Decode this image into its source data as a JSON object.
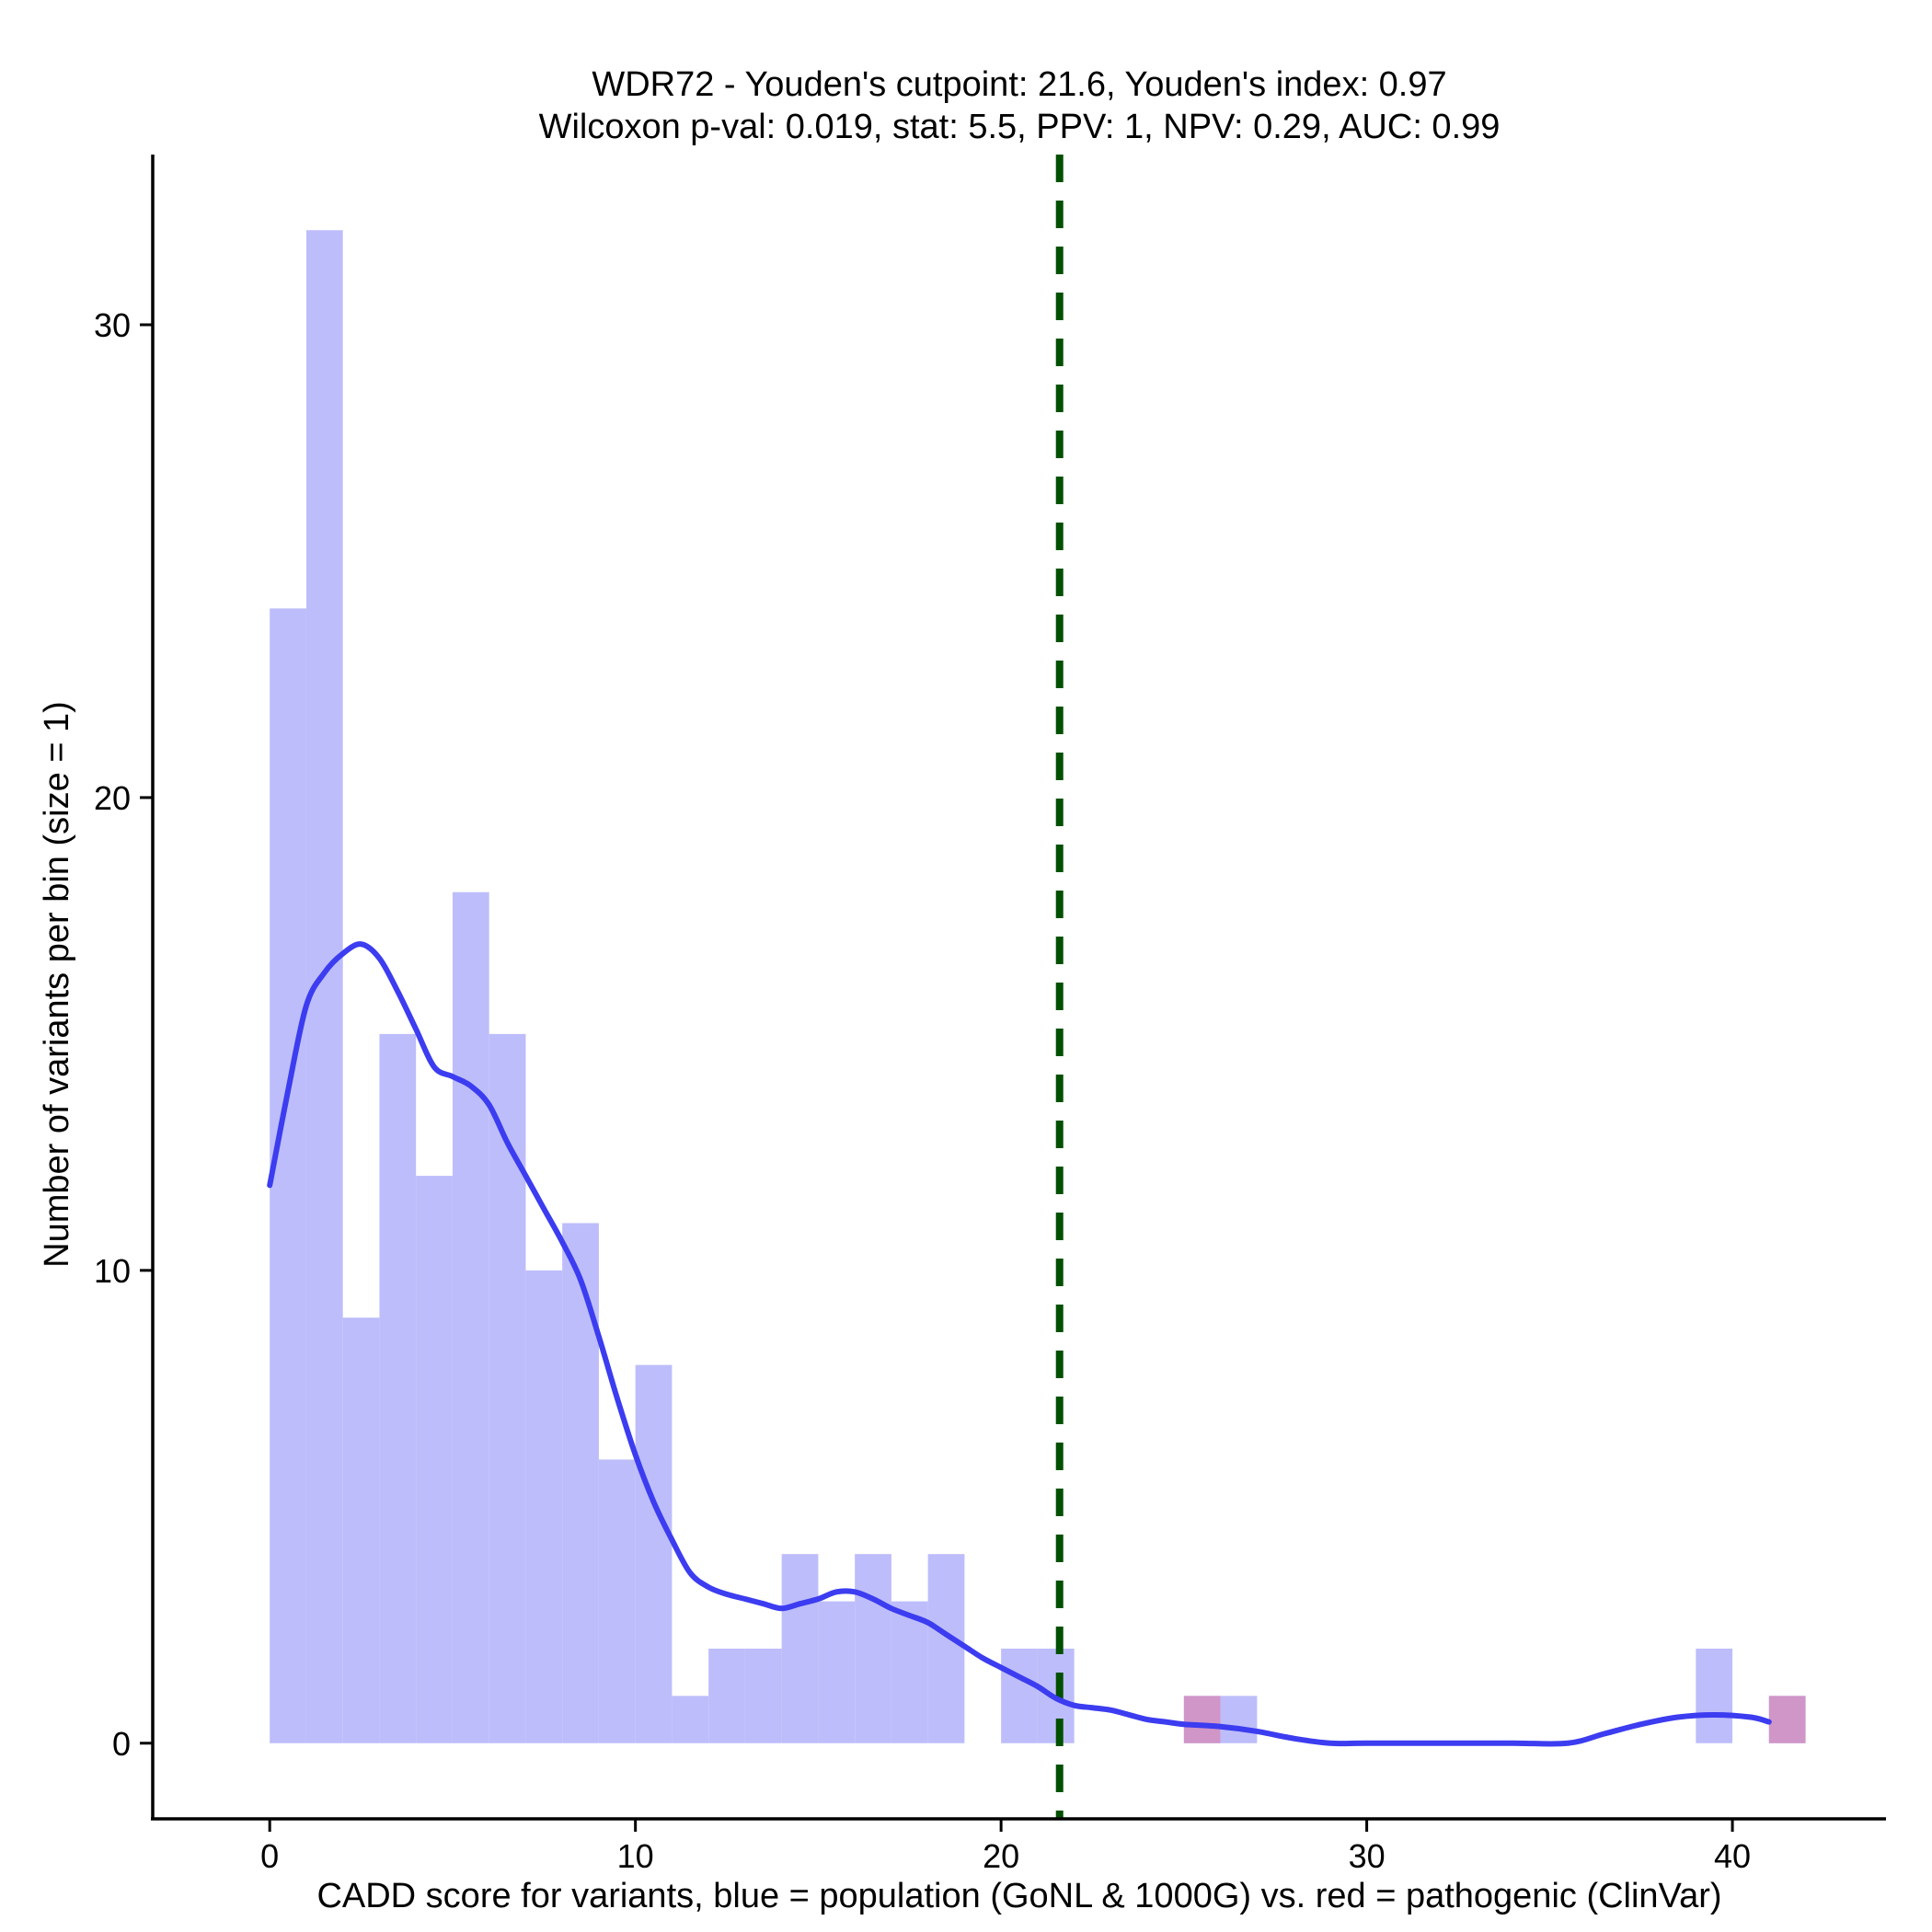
{
  "chart_data": {
    "type": "histogram",
    "title_line1": "WDR72 - Youden's cutpoint: 21.6, Youden's index: 0.97",
    "title_line2": "Wilcoxon p-val: 0.019, stat: 5.5, PPV: 1, NPV: 0.29, AUC: 0.99",
    "xlabel": "CADD score for variants, blue = population (GoNL & 1000G) vs. red = pathogenic (ClinVar)",
    "ylabel": "Number of variants per bin (size = 1)",
    "xlim": [
      -3.2,
      44.2
    ],
    "ylim": [
      -1.6,
      33.6
    ],
    "x_ticks": [
      0,
      10,
      20,
      30,
      40
    ],
    "x_tick_labels": [
      "0",
      "10",
      "20",
      "30",
      "40"
    ],
    "y_ticks": [
      0,
      10,
      20,
      30
    ],
    "y_tick_labels": [
      "0",
      "10",
      "20",
      "30"
    ],
    "bin_size": 1,
    "series": [
      {
        "name": "population",
        "color": "#bdbdfb",
        "bins": [
          {
            "x": 0,
            "count": 24
          },
          {
            "x": 1,
            "count": 32
          },
          {
            "x": 2,
            "count": 9
          },
          {
            "x": 3,
            "count": 15
          },
          {
            "x": 4,
            "count": 12
          },
          {
            "x": 5,
            "count": 18
          },
          {
            "x": 6,
            "count": 15
          },
          {
            "x": 7,
            "count": 10
          },
          {
            "x": 8,
            "count": 11
          },
          {
            "x": 9,
            "count": 6
          },
          {
            "x": 10,
            "count": 8
          },
          {
            "x": 11,
            "count": 1
          },
          {
            "x": 12,
            "count": 2
          },
          {
            "x": 13,
            "count": 2
          },
          {
            "x": 14,
            "count": 4
          },
          {
            "x": 15,
            "count": 3
          },
          {
            "x": 16,
            "count": 4
          },
          {
            "x": 17,
            "count": 3
          },
          {
            "x": 18,
            "count": 4
          },
          {
            "x": 20,
            "count": 2
          },
          {
            "x": 21,
            "count": 2
          },
          {
            "x": 25,
            "count": 1
          },
          {
            "x": 26,
            "count": 1
          },
          {
            "x": 39,
            "count": 2
          },
          {
            "x": 41,
            "count": 1
          }
        ]
      },
      {
        "name": "pathogenic",
        "color": "#d096c8",
        "bins": [
          {
            "x": 25,
            "count": 1
          },
          {
            "x": 41,
            "count": 1
          }
        ]
      }
    ],
    "density_line": {
      "name": "population density",
      "color": "#3c3cf0",
      "x": [
        0,
        0.5,
        1,
        1.5,
        2,
        2.5,
        3,
        3.5,
        4,
        4.5,
        5,
        5.5,
        6,
        6.5,
        7,
        7.5,
        8,
        8.5,
        9,
        9.5,
        10,
        10.5,
        11,
        11.5,
        12,
        12.5,
        13,
        13.5,
        14,
        14.5,
        15,
        15.5,
        16,
        16.5,
        17,
        17.5,
        18,
        18.5,
        19,
        19.5,
        20,
        20.5,
        21,
        21.5,
        22,
        22.5,
        23,
        23.5,
        24,
        24.5,
        25,
        26,
        27,
        28,
        29,
        30,
        32,
        34,
        35.5,
        36.5,
        37.5,
        38.5,
        39.5,
        40.5,
        41
      ],
      "y": [
        11.8,
        13.8,
        15.6,
        16.3,
        16.7,
        16.9,
        16.6,
        15.9,
        15.1,
        14.3,
        14.1,
        13.9,
        13.5,
        12.7,
        12.0,
        11.3,
        10.6,
        9.8,
        8.6,
        7.3,
        6.1,
        5.1,
        4.3,
        3.6,
        3.3,
        3.15,
        3.05,
        2.95,
        2.85,
        2.95,
        3.05,
        3.2,
        3.2,
        3.05,
        2.85,
        2.7,
        2.55,
        2.3,
        2.05,
        1.8,
        1.6,
        1.4,
        1.2,
        0.95,
        0.8,
        0.75,
        0.7,
        0.6,
        0.5,
        0.45,
        0.4,
        0.35,
        0.25,
        0.1,
        0.0,
        0.0,
        0.0,
        0.0,
        0.0,
        0.2,
        0.4,
        0.55,
        0.6,
        0.55,
        0.45
      ]
    },
    "cutpoint": {
      "x": 21.6,
      "color": "#005000",
      "style": "dashed"
    }
  }
}
